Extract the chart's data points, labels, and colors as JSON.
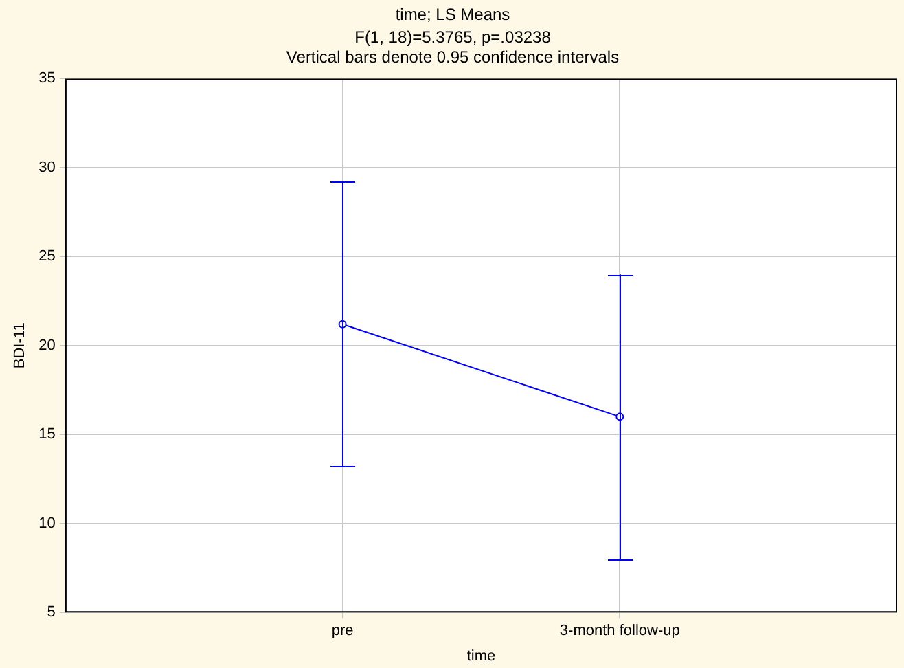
{
  "chart_data": {
    "type": "line",
    "title": "time; LS Means",
    "subtitle": "F(1, 18)=5.3765, p=.03238",
    "annotations": [
      "Vertical bars denote 0.95 confidence intervals"
    ],
    "xlabel": "time",
    "ylabel": "BDI-11",
    "categories": [
      "pre",
      "3-month follow-up"
    ],
    "series": [
      {
        "color": "#0000ff",
        "values": [
          21.2,
          16.0
        ],
        "errors": [
          8.0,
          8.0
        ]
      }
    ],
    "ylim": [
      5,
      35
    ],
    "yticks": [
      5,
      10,
      15,
      20,
      25,
      30,
      35
    ],
    "grid": true,
    "marker": "circle",
    "line_style": "solid",
    "legend": false
  }
}
